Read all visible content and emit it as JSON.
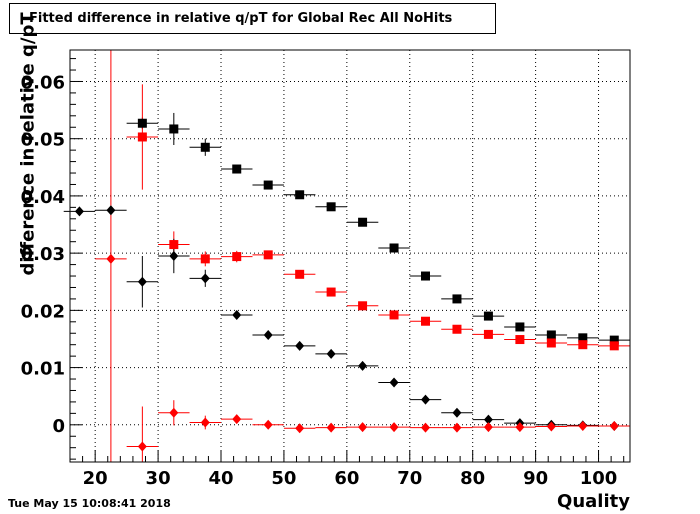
{
  "chart_data": {
    "type": "scatter",
    "title": "Fitted difference in relative q/pT  for Global Rec All NoHits",
    "xlabel": "Quality",
    "ylabel": "difference in relative q/pT",
    "xlim": [
      16,
      105
    ],
    "ylim": [
      -0.0065,
      0.0655
    ],
    "x_ticks": [
      20,
      30,
      40,
      50,
      60,
      70,
      80,
      90,
      100
    ],
    "y_ticks": [
      0,
      0.01,
      0.02,
      0.03,
      0.04,
      0.05,
      0.06
    ],
    "x_tick_labels": [
      "20",
      "30",
      "40",
      "50",
      "60",
      "70",
      "80",
      "90",
      "100"
    ],
    "y_tick_labels": [
      "0",
      "0.01",
      "0.02",
      "0.03",
      "0.04",
      "0.05",
      "0.06"
    ],
    "grid": true,
    "bin_half_width": 2.5,
    "series": [
      {
        "color": "#000000",
        "marker": "square",
        "x": [
          27.5,
          32.5,
          37.5,
          42.5,
          47.5,
          52.5,
          57.5,
          62.5,
          67.5,
          72.5,
          77.5,
          82.5,
          87.5,
          92.5,
          97.5,
          102.5
        ],
        "y": [
          0.0527,
          0.0517,
          0.0485,
          0.0447,
          0.0419,
          0.0402,
          0.0381,
          0.0354,
          0.0309,
          0.026,
          0.022,
          0.019,
          0.0171,
          0.0157,
          0.0152,
          0.0148
        ],
        "yerr": [
          0.001,
          0.0028,
          0.0015,
          0.0007,
          0.0005,
          0.0004,
          0.0004,
          0.0003,
          0.0003,
          0.0003,
          0.0003,
          0.0003,
          0.0003,
          0.0003,
          0.0003,
          0.0003
        ]
      },
      {
        "color": "#ff0000",
        "marker": "square",
        "x": [
          27.5,
          32.5,
          37.5,
          42.5,
          47.5,
          52.5,
          57.5,
          62.5,
          67.5,
          72.5,
          77.5,
          82.5,
          87.5,
          92.5,
          97.5,
          102.5
        ],
        "y": [
          0.0503,
          0.0315,
          0.029,
          0.0294,
          0.0297,
          0.0263,
          0.0232,
          0.0208,
          0.0192,
          0.0181,
          0.0167,
          0.0158,
          0.0149,
          0.0143,
          0.014,
          0.0138
        ],
        "yerr": [
          0.0092,
          0.0023,
          0.0013,
          0.001,
          0.0006,
          0.0004,
          0.0004,
          0.0003,
          0.0003,
          0.0003,
          0.0003,
          0.0003,
          0.0003,
          0.0003,
          0.0003,
          0.0003
        ]
      },
      {
        "color": "#000000",
        "marker": "diamond",
        "x": [
          17.5,
          22.5,
          27.5,
          32.5,
          37.5,
          42.5,
          47.5,
          52.5,
          57.5,
          62.5,
          67.5,
          72.5,
          77.5,
          82.5,
          87.5,
          92.5,
          97.5,
          102.5
        ],
        "y": [
          0.0373,
          0.0375,
          0.025,
          0.0295,
          0.0256,
          0.0192,
          0.0157,
          0.0138,
          0.0124,
          0.0103,
          0.0074,
          0.0044,
          0.0021,
          0.0009,
          0.0003,
          0.0,
          -0.0001,
          -0.0002
        ],
        "yerr": [
          0.0002,
          0.0002,
          0.0045,
          0.003,
          0.0015,
          0.0007,
          0.0004,
          0.0003,
          0.0003,
          0.0003,
          0.0003,
          0.0003,
          0.0003,
          0.0003,
          0.0003,
          0.0003,
          0.0003,
          0.0003
        ]
      },
      {
        "color": "#ff0000",
        "marker": "diamond",
        "x": [
          22.5,
          27.5,
          32.5,
          37.5,
          42.5,
          47.5,
          52.5,
          57.5,
          62.5,
          67.5,
          72.5,
          77.5,
          82.5,
          87.5,
          92.5,
          97.5,
          102.5
        ],
        "y": [
          0.029,
          -0.0038,
          0.0021,
          0.0004,
          0.001,
          0.0,
          -0.0006,
          -0.0005,
          -0.0004,
          -0.0004,
          -0.0005,
          -0.0005,
          -0.0004,
          -0.0004,
          -0.0003,
          -0.0002,
          -0.0002
        ],
        "yerr": [
          0.068,
          0.007,
          0.0022,
          0.0012,
          0.0006,
          0.0003,
          0.0003,
          0.0003,
          0.0003,
          0.0003,
          0.0003,
          0.0003,
          0.0003,
          0.0003,
          0.0003,
          0.0003,
          0.0003
        ]
      }
    ]
  },
  "footer": {
    "timestamp": "Tue May 15 10:08:41 2018"
  }
}
